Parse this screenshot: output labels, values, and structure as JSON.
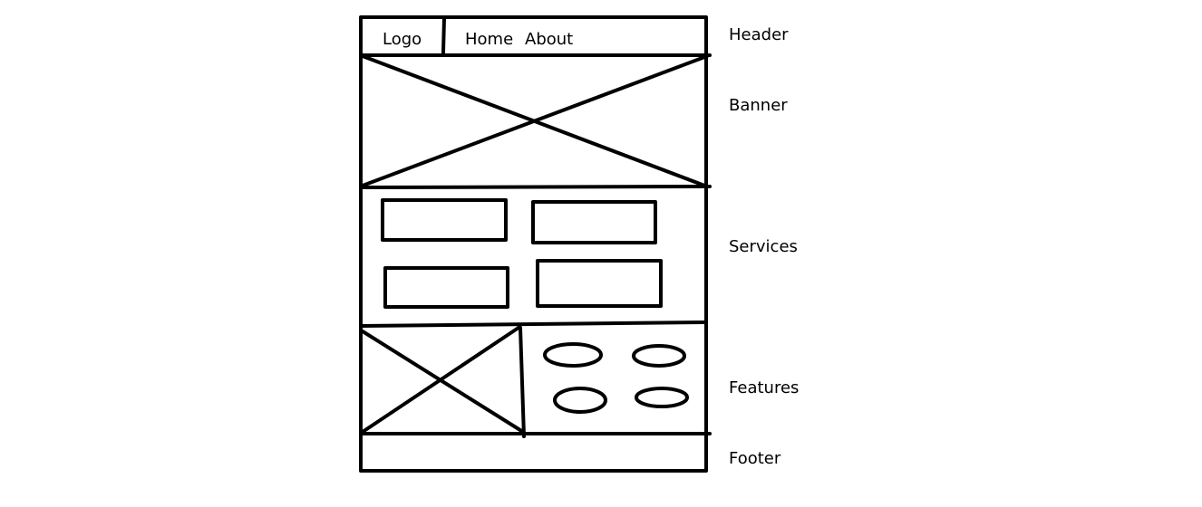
{
  "header": {
    "logo_text": "Logo",
    "nav": [
      "Home",
      "About"
    ]
  },
  "sections": [
    "Header",
    "Banner",
    "Services",
    "Features",
    "Footer"
  ],
  "colors": {
    "stroke": "#000000",
    "background": "#ffffff"
  }
}
